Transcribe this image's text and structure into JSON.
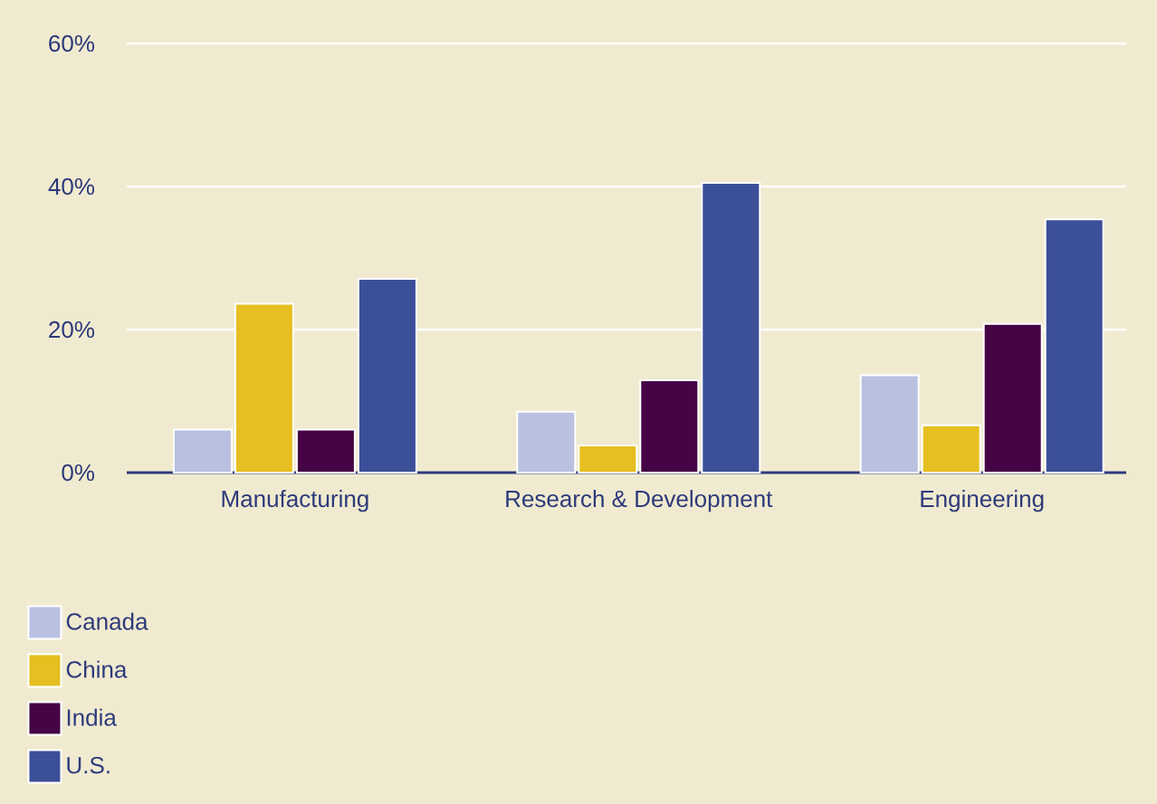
{
  "chart_data": {
    "type": "bar",
    "categories": [
      "Manufacturing",
      "Research & Development",
      "Engineering"
    ],
    "series": [
      {
        "name": "Canada",
        "color": "#b9c0e0",
        "values": [
          6.0,
          8.5,
          13.6
        ]
      },
      {
        "name": "China",
        "color": "#e6bf20",
        "values": [
          23.6,
          3.8,
          6.6
        ]
      },
      {
        "name": "India",
        "color": "#440445",
        "values": [
          6.0,
          12.9,
          20.8
        ]
      },
      {
        "name": "U.S.",
        "color": "#3c4f99",
        "values": [
          27.1,
          40.5,
          35.4
        ]
      }
    ],
    "ylim": [
      0,
      60
    ],
    "yticks": [
      {
        "value": 0,
        "label": "0%"
      },
      {
        "value": 20,
        "label": "20%"
      },
      {
        "value": 40,
        "label": "40%"
      },
      {
        "value": 60,
        "label": "60%"
      }
    ],
    "grid": "y",
    "legend": "bottom left"
  }
}
